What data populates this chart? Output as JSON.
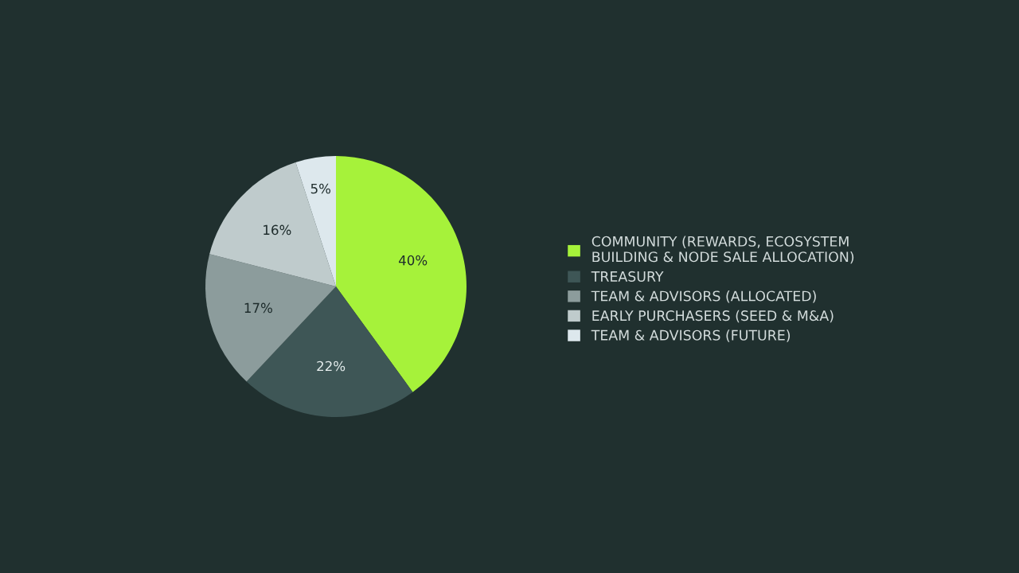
{
  "chart_data": {
    "type": "pie",
    "categories": [
      "COMMUNITY (REWARDS, ECOSYSTEM\nBUILDING & NODE SALE ALLOCATION)",
      "TREASURY",
      "TEAM & ADVISORS (ALLOCATED)",
      "EARLY PURCHASERS (SEED & M&A)",
      "TEAM & ADVISORS (FUTURE)"
    ],
    "values": [
      40,
      22,
      17,
      16,
      5
    ],
    "colors": [
      "#a6f23a",
      "#3e5656",
      "#8c9c9c",
      "#bfcbcc",
      "#dde8ed"
    ],
    "value_labels": [
      "40%",
      "22%",
      "17%",
      "16%",
      "5%"
    ],
    "legend": "right"
  }
}
